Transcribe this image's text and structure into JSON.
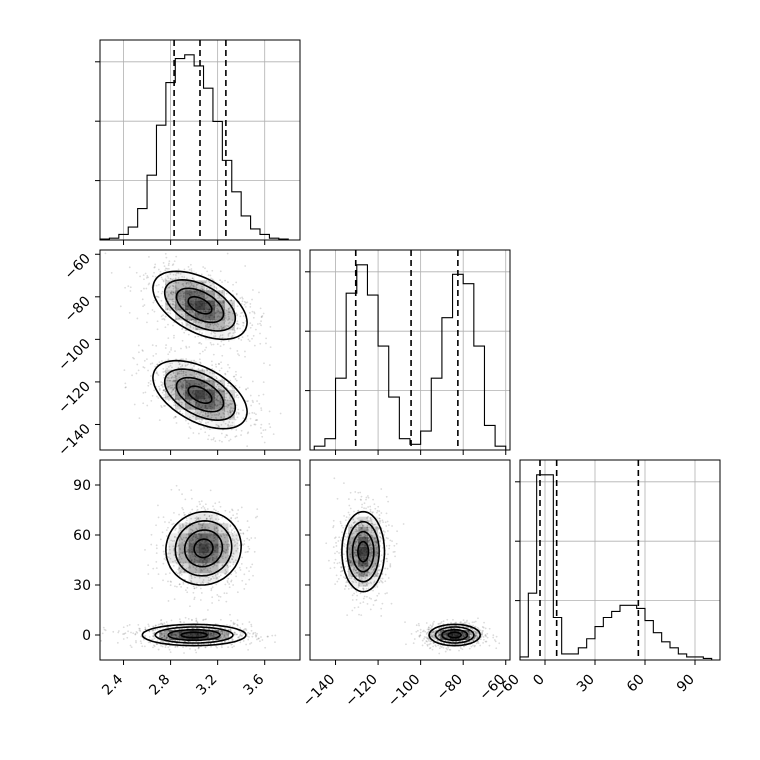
{
  "chart_data": {
    "type": "corner",
    "params": [
      {
        "range": [
          2.2,
          3.9
        ],
        "ticks": [
          2.4,
          2.8,
          3.2,
          3.6
        ],
        "tick_labels": [
          "2.4",
          "2.8",
          "3.2",
          "3.6"
        ]
      },
      {
        "range": [
          -152,
          -58
        ],
        "ticks": [
          -140,
          -120,
          -100,
          -80,
          -60
        ],
        "tick_labels": [
          "−140",
          "−120",
          "−100",
          "−80",
          "−60"
        ]
      },
      {
        "range": [
          -15,
          105
        ],
        "ticks": [
          -60,
          0,
          30,
          60,
          90
        ],
        "tick_labels": [
          "−60",
          "0",
          "30",
          "60",
          "90"
        ],
        "ytick_labels": [
          "0",
          "30",
          "60",
          "90"
        ]
      }
    ],
    "histograms": [
      {
        "param": 0,
        "bin_edges": [
          2.2,
          2.28,
          2.36,
          2.44,
          2.52,
          2.6,
          2.68,
          2.76,
          2.84,
          2.92,
          3.0,
          3.08,
          3.16,
          3.24,
          3.32,
          3.4,
          3.48,
          3.56,
          3.64,
          3.72,
          3.8
        ],
        "counts": [
          0.005,
          0.01,
          0.03,
          0.07,
          0.17,
          0.35,
          0.62,
          0.85,
          0.98,
          1.0,
          0.94,
          0.82,
          0.64,
          0.43,
          0.26,
          0.13,
          0.06,
          0.03,
          0.01,
          0.005
        ],
        "quantiles": [
          2.83,
          3.05,
          3.27
        ]
      },
      {
        "param": 1,
        "bin_edges": [
          -150,
          -145,
          -140,
          -135,
          -130,
          -125,
          -120,
          -115,
          -110,
          -105,
          -100,
          -95,
          -90,
          -85,
          -80,
          -75,
          -70,
          -65,
          -60
        ],
        "counts": [
          0.02,
          0.06,
          0.38,
          0.83,
          0.98,
          0.82,
          0.55,
          0.28,
          0.06,
          0.03,
          0.1,
          0.38,
          0.7,
          0.93,
          0.88,
          0.55,
          0.13,
          0.02
        ],
        "quantiles": [
          -130.5,
          -104.5,
          -82.5
        ]
      },
      {
        "param": 2,
        "bin_edges": [
          -15,
          -10,
          -5,
          0,
          5,
          10,
          15,
          20,
          25,
          30,
          35,
          40,
          45,
          50,
          55,
          60,
          65,
          70,
          75,
          80,
          85,
          90,
          95,
          100
        ],
        "counts": [
          0.01,
          0.22,
          0.61,
          0.61,
          0.14,
          0.02,
          0.02,
          0.04,
          0.07,
          0.11,
          0.14,
          0.16,
          0.18,
          0.18,
          0.17,
          0.13,
          0.09,
          0.06,
          0.04,
          0.02,
          0.01,
          0.01,
          0.005
        ],
        "quantiles": [
          -3,
          7,
          56
        ]
      }
    ],
    "panels_2d": [
      {
        "x_param": 0,
        "y_param": 1,
        "modes": [
          {
            "x": 3.05,
            "y": -84,
            "sx": 0.2,
            "sy": 8,
            "rho": -0.5
          },
          {
            "x": 3.05,
            "y": -126,
            "sx": 0.2,
            "sy": 8,
            "rho": -0.5
          }
        ]
      },
      {
        "x_param": 0,
        "y_param": 2,
        "modes": [
          {
            "x": 3.08,
            "y": 52,
            "sx": 0.16,
            "sy": 11,
            "rho": 0.05
          },
          {
            "x": 3.0,
            "y": 0,
            "sx": 0.22,
            "sy": 3.2,
            "rho": 0.0
          }
        ]
      },
      {
        "x_param": 1,
        "y_param": 2,
        "modes": [
          {
            "x": -127,
            "y": 50,
            "sx": 5,
            "sy": 12,
            "rho": 0.0
          },
          {
            "x": -84,
            "y": 0,
            "sx": 6,
            "sy": 3.2,
            "rho": 0.0
          }
        ]
      }
    ]
  }
}
